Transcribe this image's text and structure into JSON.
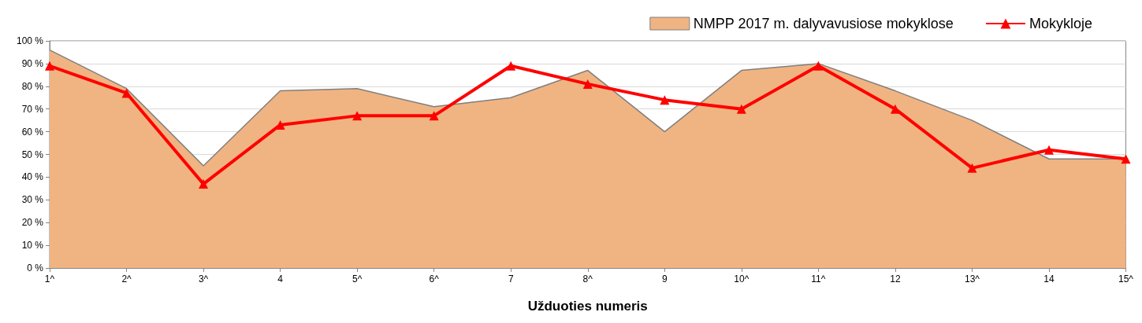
{
  "chart_data": {
    "type": "line",
    "xlabel": "Užduoties numeris",
    "categories": [
      "1^",
      "2^",
      "3^",
      "4",
      "5^",
      "6^",
      "7",
      "8^",
      "9",
      "10^",
      "11^",
      "12",
      "13^",
      "14",
      "15^"
    ],
    "series": [
      {
        "name": "NMPP 2017 m. dalyvavusiose mokyklose",
        "type": "area",
        "color": "#f0b482",
        "values": [
          96,
          79,
          45,
          78,
          79,
          71,
          75,
          87,
          60,
          87,
          90,
          78,
          65,
          48,
          48
        ]
      },
      {
        "name": "Mokykloje",
        "color": "#ff0000",
        "marker": "triangle",
        "values": [
          89,
          77,
          37,
          63,
          67,
          67,
          89,
          81,
          74,
          70,
          89,
          70,
          44,
          52,
          48
        ]
      }
    ],
    "ylim": [
      0,
      100
    ],
    "yticks": [
      {
        "value": 0,
        "label": "0 %"
      },
      {
        "value": 10,
        "label": "10 %"
      },
      {
        "value": 20,
        "label": "20 %"
      },
      {
        "value": 30,
        "label": "30 %"
      },
      {
        "value": 40,
        "label": "40 %"
      },
      {
        "value": 50,
        "label": "50 %"
      },
      {
        "value": 60,
        "label": "60 %"
      },
      {
        "value": 70,
        "label": "70 %"
      },
      {
        "value": 80,
        "label": "80 %"
      },
      {
        "value": 90,
        "label": "90 %"
      },
      {
        "value": 100,
        "label": "100 %"
      }
    ],
    "grid": "y",
    "legend": "top right"
  }
}
